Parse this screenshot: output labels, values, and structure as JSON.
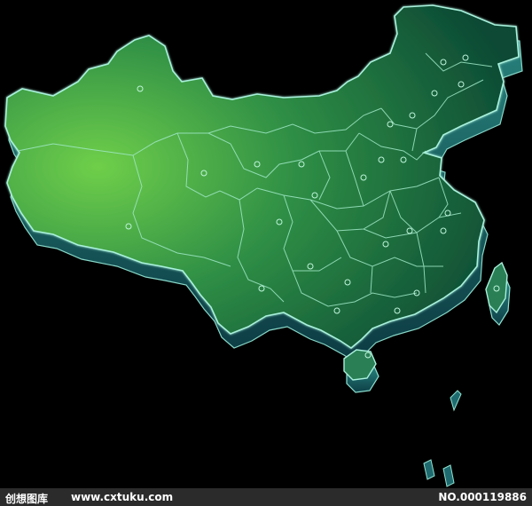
{
  "footer": {
    "brand": "创想图库",
    "url": "www.cxtuku.com",
    "image_no": "NO.000119886"
  },
  "colors": {
    "background": "#000000",
    "land_light": "#6fcf4a",
    "land_mid": "#2f8f45",
    "land_dark": "#0c4a35",
    "extrusion": "#1f6a6e",
    "border_glow": "#a9f1dc",
    "footer_bg": "#2b2b2b",
    "footer_text": "#ffffff"
  },
  "map": {
    "style": "3D extruded map of China with glowing province borders",
    "city_markers": "small circle markers"
  }
}
